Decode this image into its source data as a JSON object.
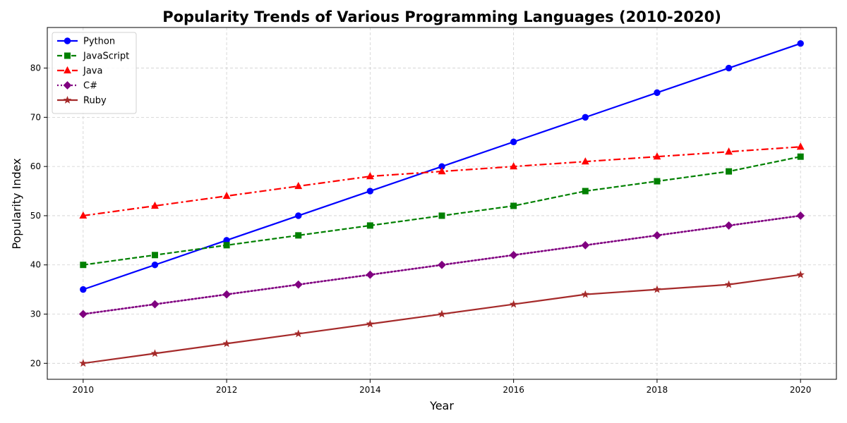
{
  "chart_data": {
    "type": "line",
    "title": "Popularity Trends of Various Programming Languages (2010-2020)",
    "xlabel": "Year",
    "ylabel": "Popularity Index",
    "x": [
      2010,
      2011,
      2012,
      2013,
      2014,
      2015,
      2016,
      2017,
      2018,
      2019,
      2020
    ],
    "xlim": [
      2009.5,
      2020.5
    ],
    "ylim": [
      16.75,
      88.25
    ],
    "xticks": [
      2010,
      2012,
      2014,
      2016,
      2018,
      2020
    ],
    "yticks": [
      20,
      30,
      40,
      50,
      60,
      70,
      80
    ],
    "grid": true,
    "legend_position": "top-left",
    "series": [
      {
        "name": "Python",
        "color": "#0000ff",
        "marker": "circle",
        "linestyle": "solid",
        "values": [
          35,
          40,
          45,
          50,
          55,
          60,
          65,
          70,
          75,
          80,
          85
        ]
      },
      {
        "name": "JavaScript",
        "color": "#008000",
        "marker": "square",
        "linestyle": "dashed",
        "values": [
          40,
          42,
          44,
          46,
          48,
          50,
          52,
          55,
          57,
          59,
          62
        ]
      },
      {
        "name": "Java",
        "color": "#ff0000",
        "marker": "triangle",
        "linestyle": "dashdot",
        "values": [
          50,
          52,
          54,
          56,
          58,
          59,
          60,
          61,
          62,
          63,
          64
        ]
      },
      {
        "name": "C#",
        "color": "#800080",
        "marker": "diamond",
        "linestyle": "dotted",
        "values": [
          30,
          32,
          34,
          36,
          38,
          40,
          42,
          44,
          46,
          48,
          50
        ]
      },
      {
        "name": "Ruby",
        "color": "#a52a2a",
        "marker": "star",
        "linestyle": "solid",
        "values": [
          20,
          22,
          24,
          26,
          28,
          30,
          32,
          34,
          35,
          36,
          38
        ]
      }
    ]
  }
}
